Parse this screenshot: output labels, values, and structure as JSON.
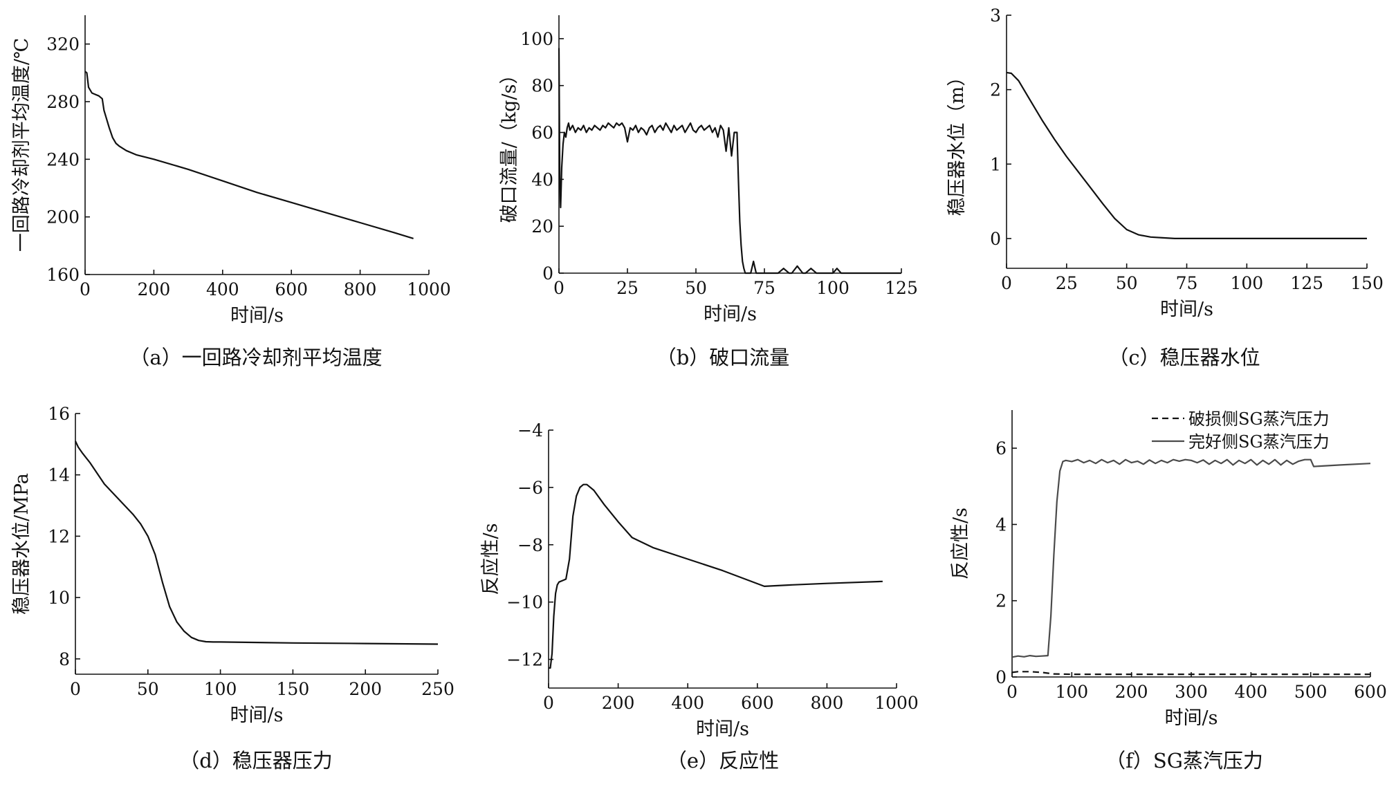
{
  "chart_data": [
    {
      "type": "line",
      "caption": "（a）一回路冷却剂平均温度",
      "xlabel": "时间/s",
      "ylabel": "一回路冷却剂平均温度/℃",
      "xlim": [
        0,
        1000
      ],
      "ylim": [
        160,
        340
      ],
      "xticks": [
        0,
        200,
        400,
        600,
        800,
        1000
      ],
      "yticks": [
        160,
        200,
        240,
        280,
        320
      ],
      "series": [
        {
          "color": "#111111",
          "dash": "solid",
          "x": [
            0,
            5,
            10,
            20,
            30,
            40,
            50,
            55,
            60,
            70,
            80,
            90,
            100,
            120,
            150,
            200,
            300,
            400,
            500,
            600,
            700,
            800,
            900,
            955
          ],
          "y": [
            301,
            300,
            290,
            286,
            285,
            284,
            282,
            274,
            270,
            262,
            255,
            251,
            249,
            246,
            243,
            240,
            233,
            225,
            217,
            210,
            203,
            196,
            189,
            185
          ]
        }
      ]
    },
    {
      "type": "line",
      "caption": "（b）破口流量",
      "xlabel": "时间/s",
      "ylabel": "破口流量/（kg/s）",
      "xlim": [
        0,
        125
      ],
      "ylim": [
        0,
        110
      ],
      "xticks": [
        0,
        25,
        50,
        75,
        100,
        125
      ],
      "yticks": [
        0,
        20,
        40,
        60,
        80,
        100
      ],
      "series": [
        {
          "color": "#111111",
          "dash": "solid",
          "x": [
            0,
            0.3,
            0.6,
            1,
            1.5,
            2,
            2.5,
            3,
            3.5,
            4,
            5,
            6,
            7,
            8,
            9,
            10,
            11,
            12,
            13,
            14,
            15,
            16,
            17,
            18,
            19,
            20,
            21,
            22,
            23,
            24,
            25,
            26,
            27,
            28,
            29,
            30,
            31,
            32,
            33,
            34,
            35,
            36,
            37,
            38,
            39,
            40,
            41,
            42,
            43,
            44,
            45,
            46,
            47,
            48,
            49,
            50,
            51,
            52,
            53,
            54,
            55,
            56,
            57,
            58,
            59,
            60,
            61,
            62,
            63,
            64,
            65,
            65.5,
            66,
            66.5,
            67,
            67.5,
            68,
            70,
            71,
            72,
            75,
            78,
            80,
            82,
            84,
            85,
            87,
            89,
            90,
            92,
            94,
            100,
            101.5,
            103,
            110,
            125
          ],
          "y": [
            96,
            40,
            28,
            45,
            55,
            60,
            58,
            62,
            64,
            61,
            63,
            60,
            62,
            61,
            63,
            60,
            62,
            61,
            63,
            62,
            61,
            63,
            62,
            64,
            63,
            62,
            64,
            63,
            64,
            62,
            56,
            62,
            61,
            63,
            60,
            62,
            61,
            59,
            62,
            63,
            60,
            62,
            63,
            61,
            64,
            62,
            60,
            63,
            61,
            62,
            63,
            60,
            62,
            64,
            61,
            60,
            62,
            63,
            61,
            62,
            63,
            60,
            62,
            58,
            63,
            61,
            52,
            62,
            50,
            60,
            60,
            40,
            22,
            12,
            5,
            2,
            0,
            0,
            5,
            0,
            0,
            0,
            0,
            2,
            0,
            0,
            3,
            0,
            0,
            2,
            0,
            0,
            2,
            0,
            0,
            0
          ]
        }
      ]
    },
    {
      "type": "line",
      "caption": "（c）稳压器水位",
      "xlabel": "时间/s",
      "ylabel": "稳压器水位（m）",
      "xlim": [
        0,
        150
      ],
      "ylim": [
        -0.4,
        3
      ],
      "xticks": [
        0,
        25,
        50,
        75,
        100,
        125,
        150
      ],
      "yticks": [
        0,
        1,
        2,
        3
      ],
      "series": [
        {
          "color": "#111111",
          "dash": "solid",
          "x": [
            0,
            2,
            5,
            10,
            15,
            20,
            25,
            30,
            35,
            40,
            45,
            50,
            55,
            60,
            65,
            70,
            80,
            100,
            150
          ],
          "y": [
            2.23,
            2.22,
            2.12,
            1.85,
            1.58,
            1.33,
            1.1,
            0.89,
            0.68,
            0.47,
            0.27,
            0.12,
            0.05,
            0.02,
            0.01,
            0.0,
            0.0,
            0.0,
            0.0
          ]
        }
      ]
    },
    {
      "type": "line",
      "caption": "（d）稳压器压力",
      "xlabel": "时间/s",
      "ylabel": "稳压器水位/MPa",
      "xlim": [
        0,
        250
      ],
      "ylim": [
        7.5,
        16
      ],
      "xticks": [
        0,
        50,
        100,
        150,
        200,
        250
      ],
      "yticks": [
        8,
        10,
        12,
        14,
        16
      ],
      "series": [
        {
          "color": "#111111",
          "dash": "solid",
          "x": [
            0,
            2,
            5,
            10,
            20,
            30,
            40,
            45,
            50,
            55,
            60,
            65,
            70,
            75,
            80,
            85,
            90,
            95,
            100,
            150,
            200,
            250
          ],
          "y": [
            15.1,
            14.9,
            14.7,
            14.4,
            13.7,
            13.2,
            12.7,
            12.4,
            12.0,
            11.4,
            10.5,
            9.7,
            9.2,
            8.9,
            8.7,
            8.6,
            8.56,
            8.55,
            8.55,
            8.52,
            8.5,
            8.48
          ]
        }
      ]
    },
    {
      "type": "line",
      "caption": "（e）反应性",
      "xlabel": "时间/s",
      "ylabel": "反应性/s",
      "xlim": [
        0,
        1000
      ],
      "ylim": [
        -13,
        -4
      ],
      "xticks": [
        0,
        200,
        400,
        600,
        800,
        1000
      ],
      "yticks": [
        -12,
        -10,
        -8,
        -6,
        -4
      ],
      "series": [
        {
          "color": "#111111",
          "dash": "solid",
          "x": [
            0,
            5,
            10,
            15,
            20,
            25,
            30,
            40,
            50,
            60,
            70,
            80,
            90,
            100,
            110,
            130,
            160,
            200,
            240,
            300,
            400,
            500,
            620,
            700,
            800,
            960
          ],
          "y": [
            -12.3,
            -12.3,
            -11.8,
            -10.5,
            -9.7,
            -9.4,
            -9.3,
            -9.25,
            -9.2,
            -8.5,
            -7.0,
            -6.3,
            -6.0,
            -5.9,
            -5.9,
            -6.1,
            -6.6,
            -7.2,
            -7.75,
            -8.1,
            -8.5,
            -8.9,
            -9.45,
            -9.4,
            -9.35,
            -9.28
          ]
        }
      ]
    },
    {
      "type": "line",
      "caption": "（f）SG蒸汽压力",
      "xlabel": "时间/s",
      "ylabel": "反应性/s",
      "xlim": [
        0,
        600
      ],
      "ylim": [
        0,
        7
      ],
      "xticks": [
        0,
        100,
        200,
        300,
        400,
        500,
        600
      ],
      "yticks": [
        0,
        2,
        4,
        6
      ],
      "legend": "top-right",
      "series": [
        {
          "name": "破损侧SG蒸汽压力",
          "color": "#111111",
          "dash": "dashed",
          "x": [
            0,
            10,
            30,
            50,
            60,
            70,
            100,
            200,
            300,
            400,
            500,
            600
          ],
          "y": [
            0.12,
            0.14,
            0.14,
            0.12,
            0.1,
            0.08,
            0.07,
            0.07,
            0.07,
            0.07,
            0.07,
            0.07
          ]
        },
        {
          "name": "完好侧SG蒸汽压力",
          "color": "#4a4a4a",
          "dash": "solid",
          "x": [
            0,
            10,
            20,
            30,
            40,
            50,
            60,
            65,
            70,
            75,
            80,
            85,
            90,
            100,
            110,
            120,
            130,
            140,
            150,
            160,
            170,
            180,
            190,
            200,
            210,
            220,
            230,
            240,
            250,
            260,
            270,
            280,
            290,
            300,
            310,
            320,
            330,
            340,
            350,
            360,
            370,
            380,
            390,
            400,
            410,
            420,
            430,
            440,
            450,
            460,
            470,
            480,
            490,
            500,
            505,
            550,
            600
          ],
          "y": [
            0.52,
            0.55,
            0.53,
            0.56,
            0.54,
            0.55,
            0.56,
            1.6,
            3.2,
            4.6,
            5.4,
            5.65,
            5.68,
            5.65,
            5.7,
            5.62,
            5.68,
            5.6,
            5.7,
            5.62,
            5.68,
            5.58,
            5.7,
            5.62,
            5.66,
            5.58,
            5.69,
            5.6,
            5.68,
            5.62,
            5.7,
            5.66,
            5.7,
            5.68,
            5.62,
            5.69,
            5.58,
            5.68,
            5.6,
            5.7,
            5.56,
            5.68,
            5.6,
            5.7,
            5.56,
            5.68,
            5.58,
            5.7,
            5.56,
            5.68,
            5.58,
            5.66,
            5.7,
            5.7,
            5.52,
            5.56,
            5.6
          ]
        }
      ]
    }
  ]
}
